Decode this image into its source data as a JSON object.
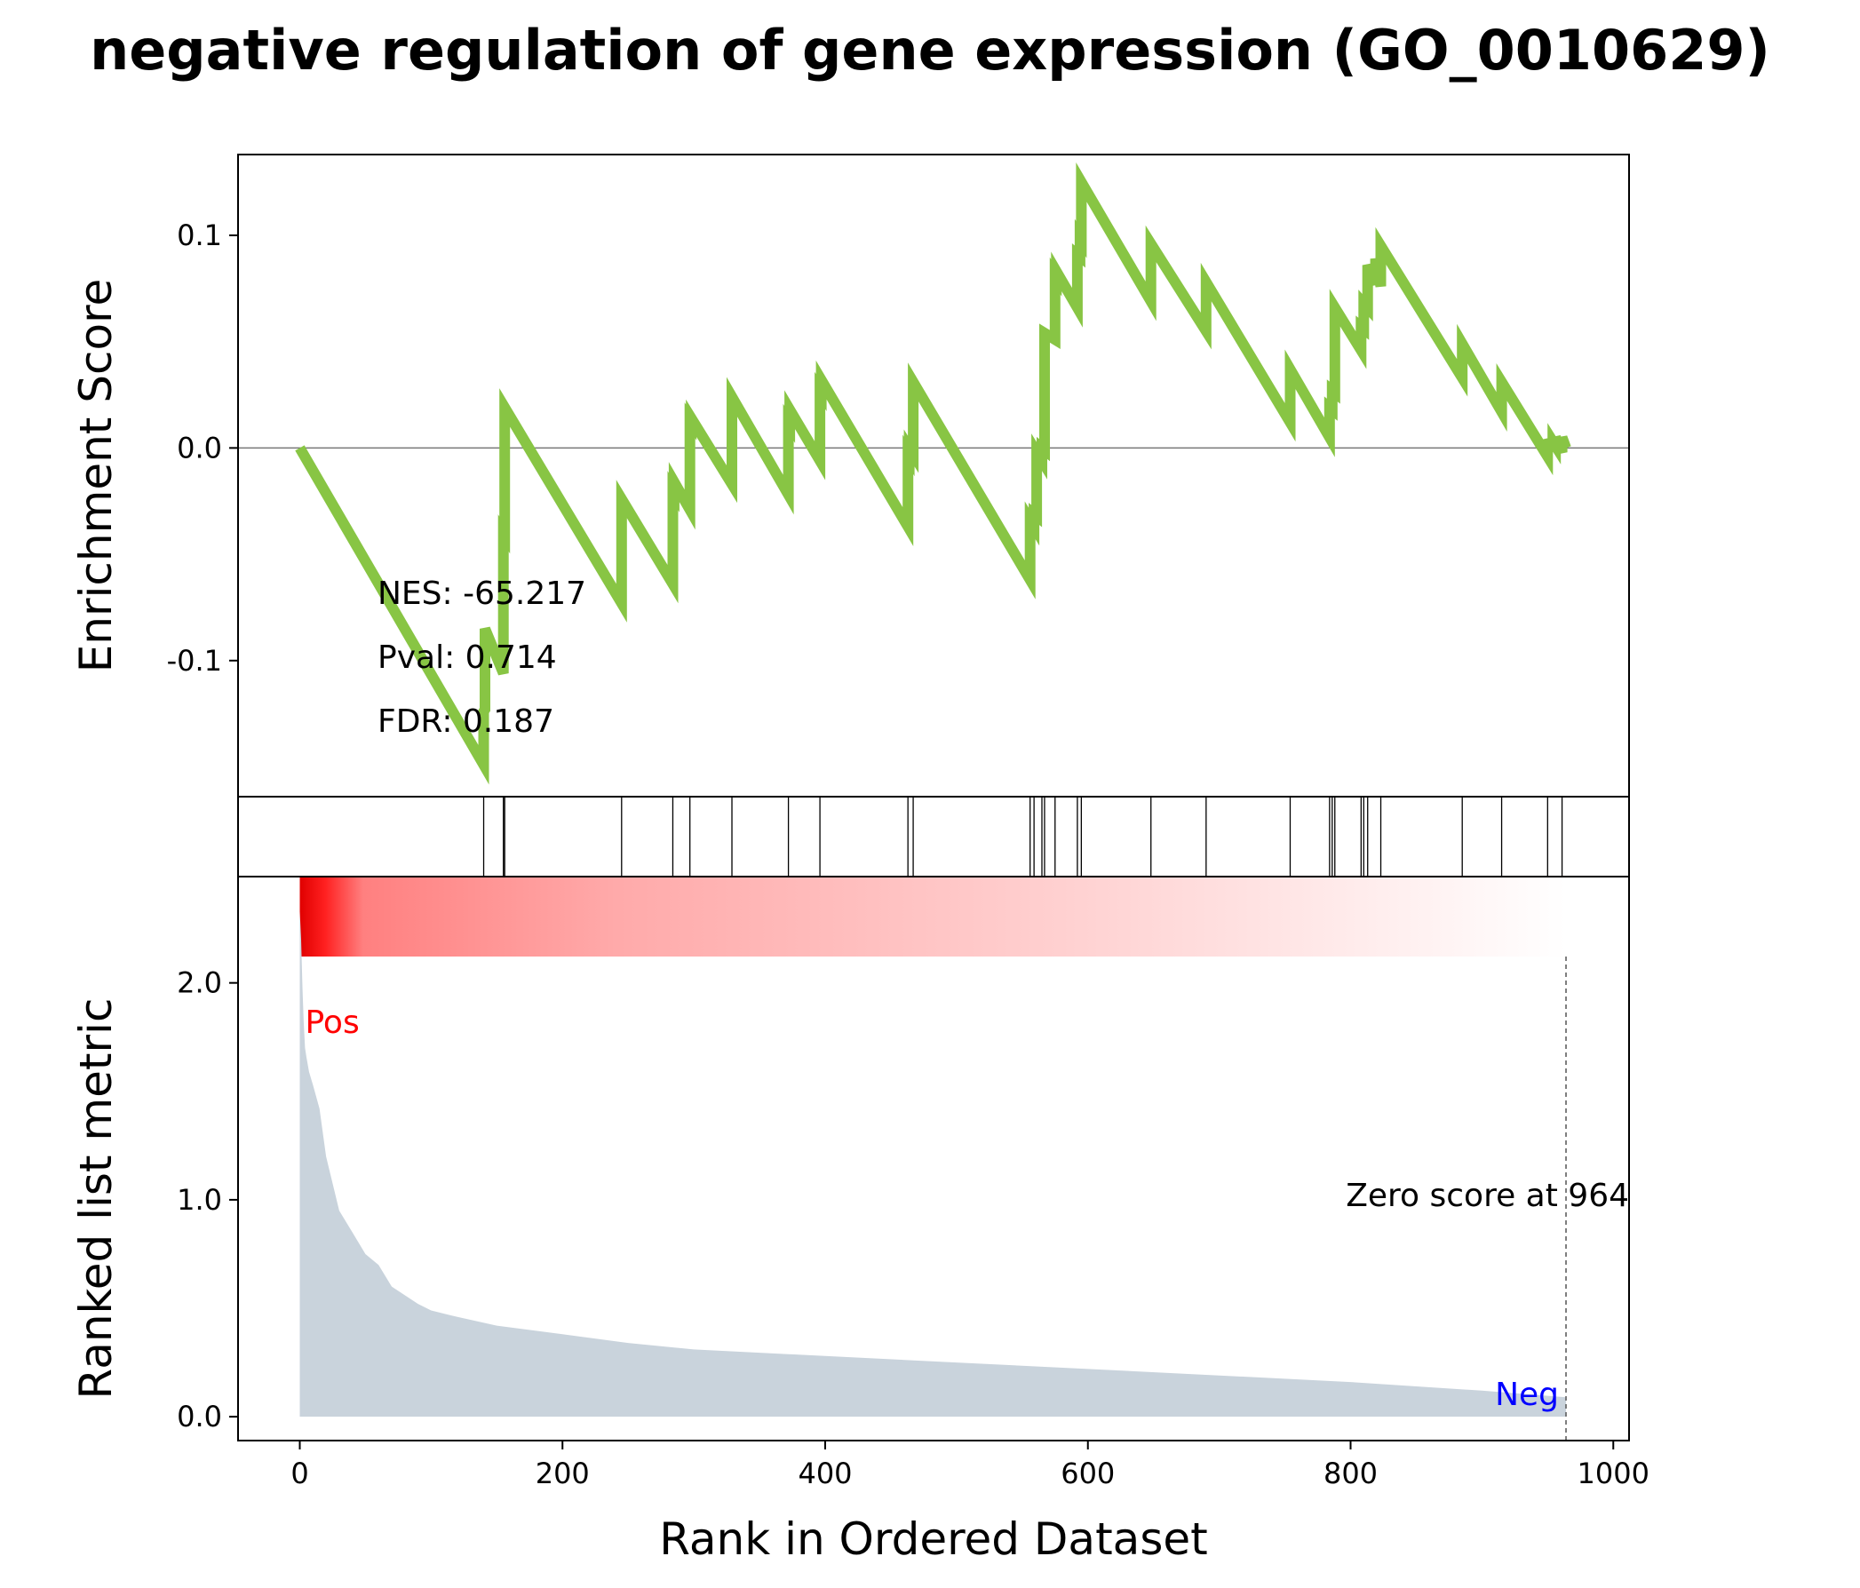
{
  "chart_data": [
    {
      "panel": "enrichment",
      "type": "line",
      "title": "negative regulation of gene expression (GO_0010629)",
      "ylabel": "Enrichment Score",
      "xlim": [
        -47,
        1012
      ],
      "ylim": [
        -0.164,
        0.138
      ],
      "yticks": [
        0.1,
        0.0,
        -0.1
      ],
      "ytick_labels": [
        "0.1",
        "0.0",
        "-0.1"
      ],
      "line_color": "#88c544",
      "zero_line": 0.0,
      "series": [
        {
          "x": [
            0,
            140,
            140,
            141,
            141,
            155,
            155,
            156,
            156,
            245,
            245,
            284,
            284,
            285,
            285,
            297,
            297,
            298,
            298,
            329,
            329,
            372,
            372,
            373,
            373,
            396,
            396,
            397,
            397,
            463,
            463,
            464,
            464,
            467,
            467,
            556,
            556,
            559,
            559,
            561,
            561,
            565,
            565,
            567,
            567,
            575,
            575,
            576,
            576,
            592,
            592,
            594,
            594,
            595,
            595,
            648,
            648,
            690,
            690,
            754,
            754,
            784,
            784,
            786,
            786,
            788,
            788,
            808,
            808,
            810,
            810,
            813,
            813,
            819,
            819,
            823,
            823,
            885,
            885,
            915,
            915,
            950,
            950,
            954,
            954,
            956,
            956,
            961,
            961,
            964
          ],
          "y": [
            0.0,
            -0.149,
            -0.124,
            -0.123,
            -0.085,
            -0.106,
            -0.04,
            -0.041,
            0.019,
            -0.073,
            -0.024,
            -0.064,
            -0.02,
            -0.021,
            -0.016,
            -0.029,
            0.013,
            0.012,
            0.014,
            -0.017,
            0.024,
            -0.022,
            0.012,
            0.011,
            0.018,
            -0.006,
            0.027,
            0.026,
            0.032,
            -0.037,
            -0.003,
            -0.004,
            0.0,
            -0.003,
            0.031,
            -0.062,
            -0.034,
            -0.037,
            -0.031,
            -0.032,
            -0.002,
            -0.006,
            0.0,
            -0.001,
            0.054,
            0.051,
            0.081,
            0.08,
            0.083,
            0.066,
            0.091,
            0.09,
            0.099,
            0.098,
            0.125,
            0.069,
            0.096,
            0.055,
            0.078,
            0.012,
            0.037,
            0.005,
            0.019,
            0.018,
            0.027,
            0.026,
            0.066,
            0.046,
            0.057,
            0.056,
            0.068,
            0.066,
            0.086,
            0.077,
            0.089,
            0.076,
            0.095,
            0.033,
            0.049,
            0.017,
            0.031,
            -0.004,
            0.004,
            -0.001,
            0.003,
            0.001,
            0.005,
            -0.002,
            0.005,
            0.0
          ]
        }
      ],
      "annotations": [
        "NES: -65.217",
        "Pval: 0.714",
        "FDR: 0.187"
      ]
    },
    {
      "panel": "hits",
      "type": "barcode",
      "hit_positions": [
        140,
        155,
        156,
        245,
        284,
        297,
        329,
        372,
        396,
        463,
        467,
        556,
        559,
        565,
        567,
        575,
        592,
        595,
        648,
        690,
        754,
        784,
        786,
        788,
        808,
        810,
        813,
        823,
        885,
        915,
        950,
        961
      ]
    },
    {
      "panel": "ranked_metric",
      "type": "area",
      "xlabel": "Rank in Ordered Dataset",
      "ylabel": "Ranked list metric",
      "xlim": [
        -47,
        1012
      ],
      "ylim": [
        -0.11,
        2.49
      ],
      "xticks": [
        0,
        200,
        400,
        600,
        800,
        1000
      ],
      "xtick_labels": [
        "0",
        "200",
        "400",
        "600",
        "800",
        "1000"
      ],
      "yticks": [
        0.0,
        1.0,
        2.0
      ],
      "ytick_labels": [
        "0.0",
        "1.0",
        "2.0"
      ],
      "fill_color": "#c9d3dc",
      "heatmap_gradient": [
        "#e00000",
        "#ffffff"
      ],
      "x": [
        0,
        1,
        2,
        3,
        4,
        5,
        7,
        10,
        15,
        20,
        30,
        40,
        50,
        60,
        70,
        80,
        90,
        100,
        120,
        150,
        200,
        250,
        300,
        400,
        500,
        600,
        700,
        800,
        900,
        964
      ],
      "values": [
        2.33,
        2.2,
        1.98,
        1.82,
        1.7,
        1.66,
        1.59,
        1.53,
        1.42,
        1.2,
        0.95,
        0.85,
        0.75,
        0.7,
        0.6,
        0.56,
        0.52,
        0.49,
        0.46,
        0.42,
        0.38,
        0.34,
        0.31,
        0.28,
        0.25,
        0.22,
        0.19,
        0.16,
        0.12,
        0.09
      ],
      "zero_score_rank": 964,
      "zero_score_label": "Zero score at 964",
      "pos_label": "Pos",
      "neg_label": "Neg",
      "pos_color": "#ff0000",
      "neg_color": "#0000ff"
    }
  ]
}
